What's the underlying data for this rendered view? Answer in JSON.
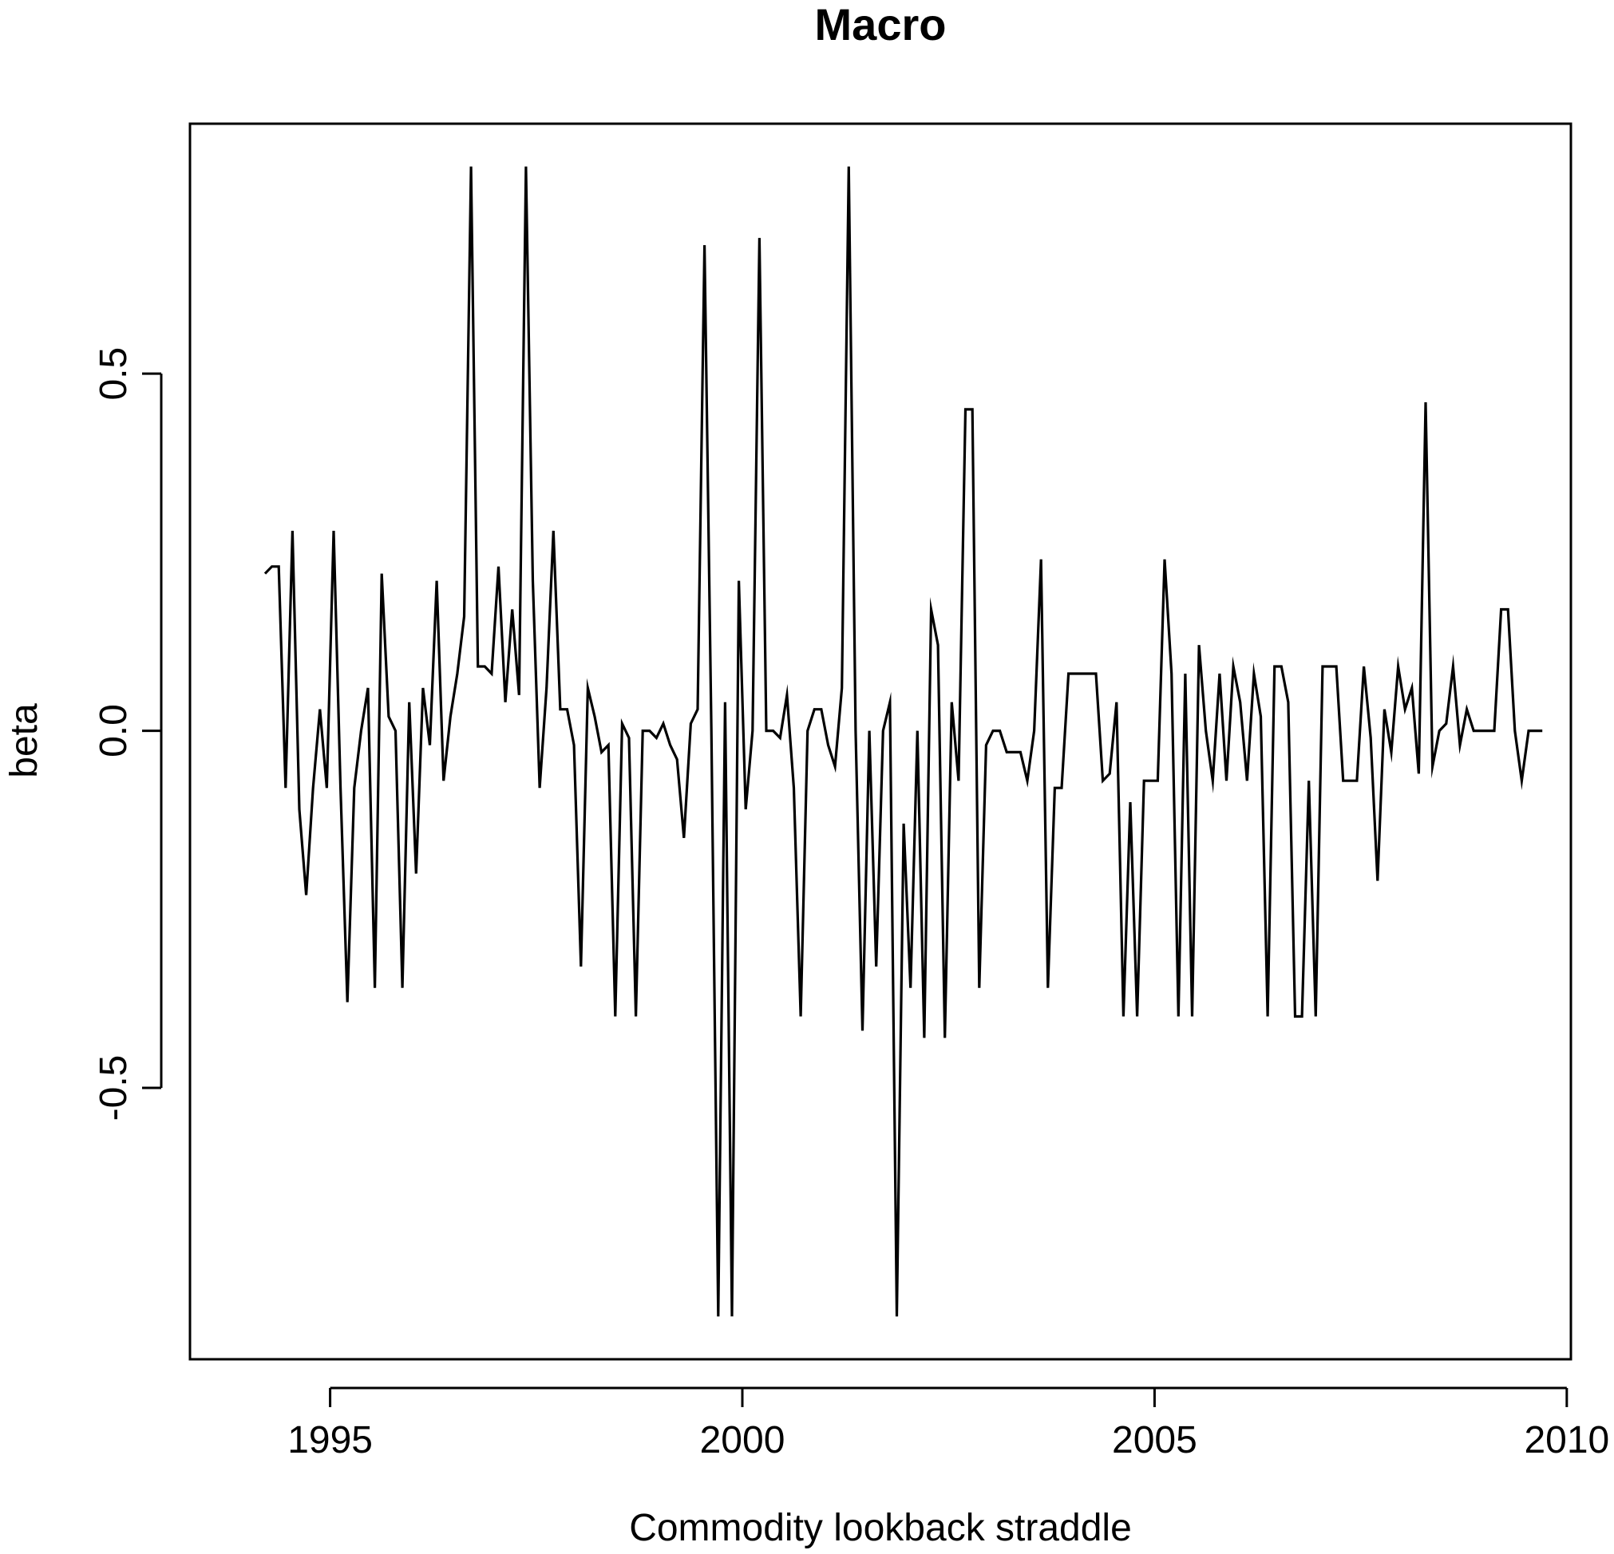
{
  "chart_data": {
    "type": "line",
    "title": "Macro",
    "xlabel": "Commodity lookback straddle",
    "ylabel": "beta",
    "xlim": [
      1993.3,
      2010.05
    ],
    "ylim": [
      -0.88,
      0.85
    ],
    "x_ticks": [
      1995,
      2000,
      2005,
      2010
    ],
    "x_tick_labels": [
      "1995",
      "2000",
      "2005",
      "2010"
    ],
    "y_ticks": [
      -0.5,
      0.0,
      0.5
    ],
    "y_tick_labels": [
      "-0.5",
      "0.0",
      "0.5"
    ],
    "grid": false,
    "line_color": "#000000",
    "series": [
      {
        "x_start": 1994.21,
        "x_step": 0.0833,
        "values": [
          0.22,
          0.23,
          0.23,
          -0.08,
          0.28,
          -0.11,
          -0.23,
          -0.08,
          0.03,
          -0.08,
          0.28,
          -0.08,
          -0.38,
          -0.08,
          0.0,
          0.06,
          -0.36,
          0.22,
          0.02,
          0.0,
          -0.36,
          0.04,
          -0.2,
          0.06,
          -0.02,
          0.21,
          -0.07,
          0.02,
          0.08,
          0.16,
          0.79,
          0.09,
          0.09,
          0.08,
          0.23,
          0.04,
          0.17,
          0.05,
          0.79,
          0.21,
          -0.08,
          0.06,
          0.28,
          0.03,
          0.03,
          -0.02,
          -0.33,
          0.06,
          0.02,
          -0.03,
          -0.02,
          -0.4,
          0.01,
          -0.01,
          -0.4,
          0.0,
          0.0,
          -0.01,
          0.01,
          -0.02,
          -0.04,
          -0.15,
          0.01,
          0.03,
          0.68,
          0.0,
          -0.82,
          0.04,
          -0.82,
          0.21,
          -0.11,
          0.0,
          0.69,
          0.0,
          0.0,
          -0.01,
          0.05,
          -0.08,
          -0.4,
          0.0,
          0.03,
          0.03,
          -0.02,
          -0.05,
          0.06,
          0.79,
          0.0,
          -0.42,
          0.0,
          -0.33,
          0.0,
          0.04,
          -0.82,
          -0.13,
          -0.36,
          0.0,
          -0.43,
          0.17,
          0.12,
          -0.43,
          0.04,
          -0.07,
          0.45,
          0.45,
          -0.36,
          -0.02,
          0.0,
          0.0,
          -0.03,
          -0.03,
          -0.03,
          -0.07,
          0.0,
          0.24,
          -0.36,
          -0.08,
          -0.08,
          0.08,
          0.08,
          0.08,
          0.08,
          0.08,
          -0.07,
          -0.06,
          0.04,
          -0.4,
          -0.1,
          -0.4,
          -0.07,
          -0.07,
          -0.07,
          0.24,
          0.08,
          -0.4,
          0.08,
          -0.4,
          0.12,
          0.0,
          -0.07,
          0.08,
          -0.07,
          0.09,
          0.04,
          -0.07,
          0.08,
          0.02,
          -0.4,
          0.09,
          0.09,
          0.04,
          -0.4,
          -0.4,
          -0.07,
          -0.4,
          0.09,
          0.09,
          0.09,
          -0.07,
          -0.07,
          -0.07,
          0.09,
          -0.01,
          -0.21,
          0.03,
          -0.03,
          0.09,
          0.03,
          0.06,
          -0.06,
          0.46,
          -0.05,
          0.0,
          0.01,
          0.09,
          -0.02,
          0.03,
          0.0,
          0.0,
          0.0,
          0.0,
          0.17,
          0.17,
          0.0,
          -0.07,
          0.0,
          0.0,
          0.0
        ]
      }
    ]
  }
}
